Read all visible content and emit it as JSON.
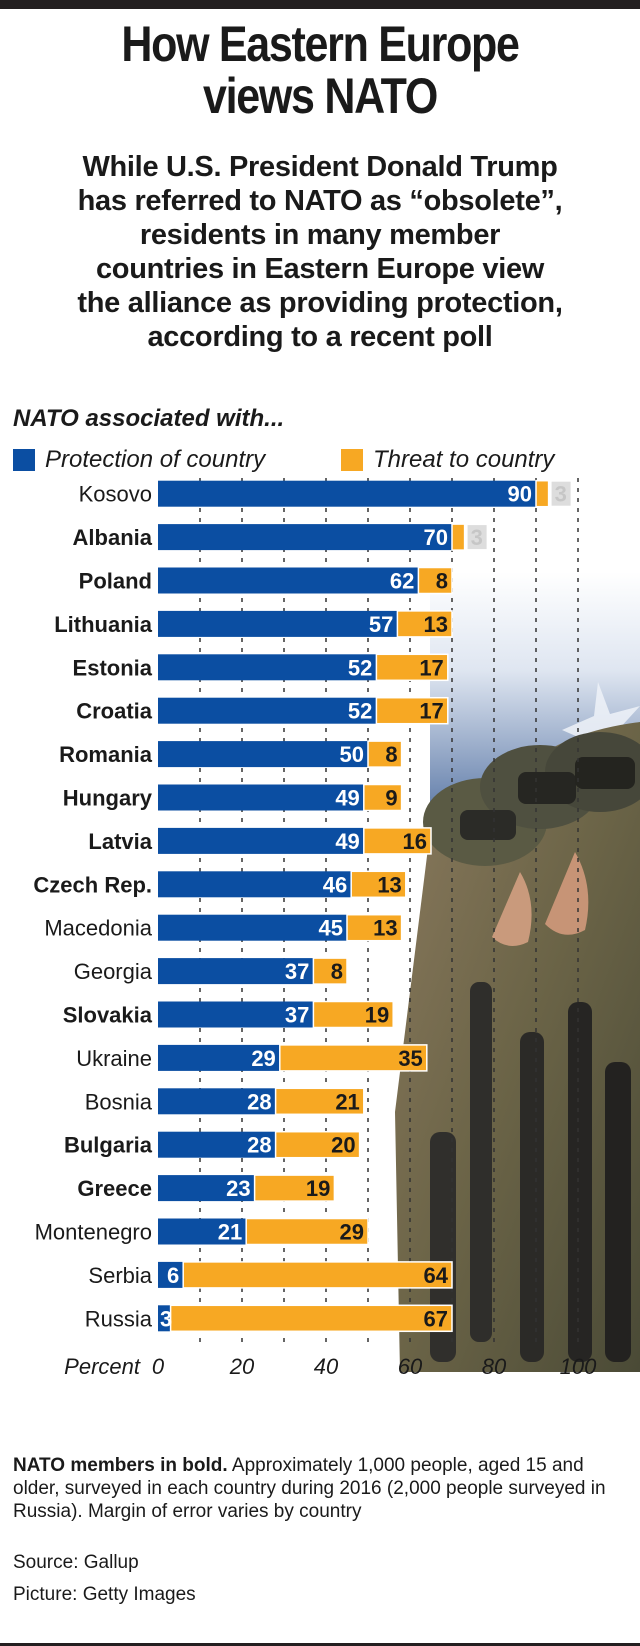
{
  "title_line1": "How Eastern Europe",
  "title_line2": "views NATO",
  "subtitle_lines": [
    "While U.S. President Donald Trump",
    "has referred to NATO as “obsolete”,",
    "residents in many member",
    "countries in Eastern Europe view",
    "the alliance as providing protection,",
    "according to a recent poll"
  ],
  "chart_heading": "NATO associated with...",
  "colors": {
    "protection": "#0b4ea2",
    "threat": "#f7a823",
    "text": "#1a1a1a"
  },
  "chart_data": {
    "type": "bar",
    "orientation": "horizontal",
    "stacked": true,
    "xlabel": "Percent",
    "xlim": [
      0,
      100
    ],
    "xticks": [
      0,
      20,
      40,
      60,
      80,
      100
    ],
    "grid": true,
    "legend_position": "top",
    "categories": [
      "Kosovo",
      "Albania",
      "Poland",
      "Lithuania",
      "Estonia",
      "Croatia",
      "Romania",
      "Hungary",
      "Latvia",
      "Czech Rep.",
      "Macedonia",
      "Georgia",
      "Slovakia",
      "Ukraine",
      "Bosnia",
      "Bulgaria",
      "Greece",
      "Montenegro",
      "Serbia",
      "Russia"
    ],
    "nato_member": [
      false,
      true,
      true,
      true,
      true,
      true,
      true,
      true,
      true,
      true,
      false,
      false,
      true,
      false,
      false,
      true,
      true,
      false,
      false,
      false
    ],
    "series": [
      {
        "name": "Protection of country",
        "values": [
          90,
          70,
          62,
          57,
          52,
          52,
          50,
          49,
          49,
          46,
          45,
          37,
          37,
          29,
          28,
          28,
          23,
          21,
          6,
          3
        ]
      },
      {
        "name": "Threat to country",
        "values": [
          3,
          3,
          8,
          13,
          17,
          17,
          8,
          9,
          16,
          13,
          13,
          8,
          19,
          35,
          21,
          20,
          19,
          29,
          64,
          67
        ]
      }
    ]
  },
  "footnote_bold": "NATO members in bold.",
  "footnote_text": " Approximately 1,000 people, aged 15 and older, surveyed in each country during 2016 (2,000 people surveyed in Russia). Margin of error varies by country",
  "source": "Source: Gallup",
  "picture_credit": "Picture: Getty Images"
}
